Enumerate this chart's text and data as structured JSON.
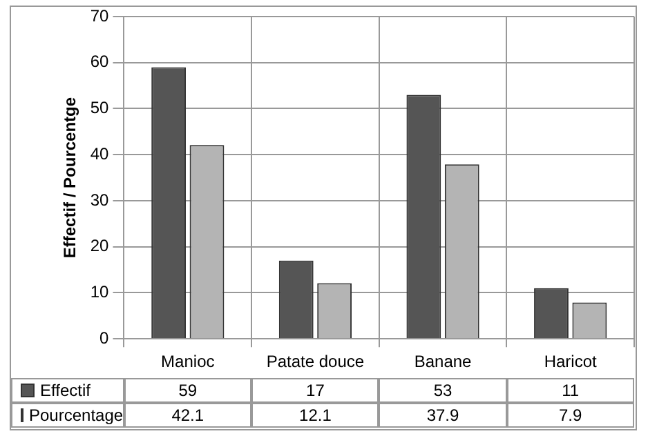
{
  "chart_data": {
    "type": "bar",
    "ylabel": "Effectif / Pourcentge",
    "categories": [
      "Manioc",
      "Patate douce",
      "Banane",
      "Haricot"
    ],
    "series": [
      {
        "name": "Effectif",
        "color": "#555555",
        "values": [
          59,
          17,
          53,
          11
        ]
      },
      {
        "name": "Pourcentage",
        "color": "#b4b4b4",
        "values": [
          42.1,
          12.1,
          37.9,
          7.9
        ]
      }
    ],
    "ylim": [
      0,
      70
    ],
    "yticks": [
      0,
      10,
      20,
      30,
      40,
      50,
      60,
      70
    ],
    "grid": "y",
    "legend": "bottom",
    "data_labels": true
  }
}
